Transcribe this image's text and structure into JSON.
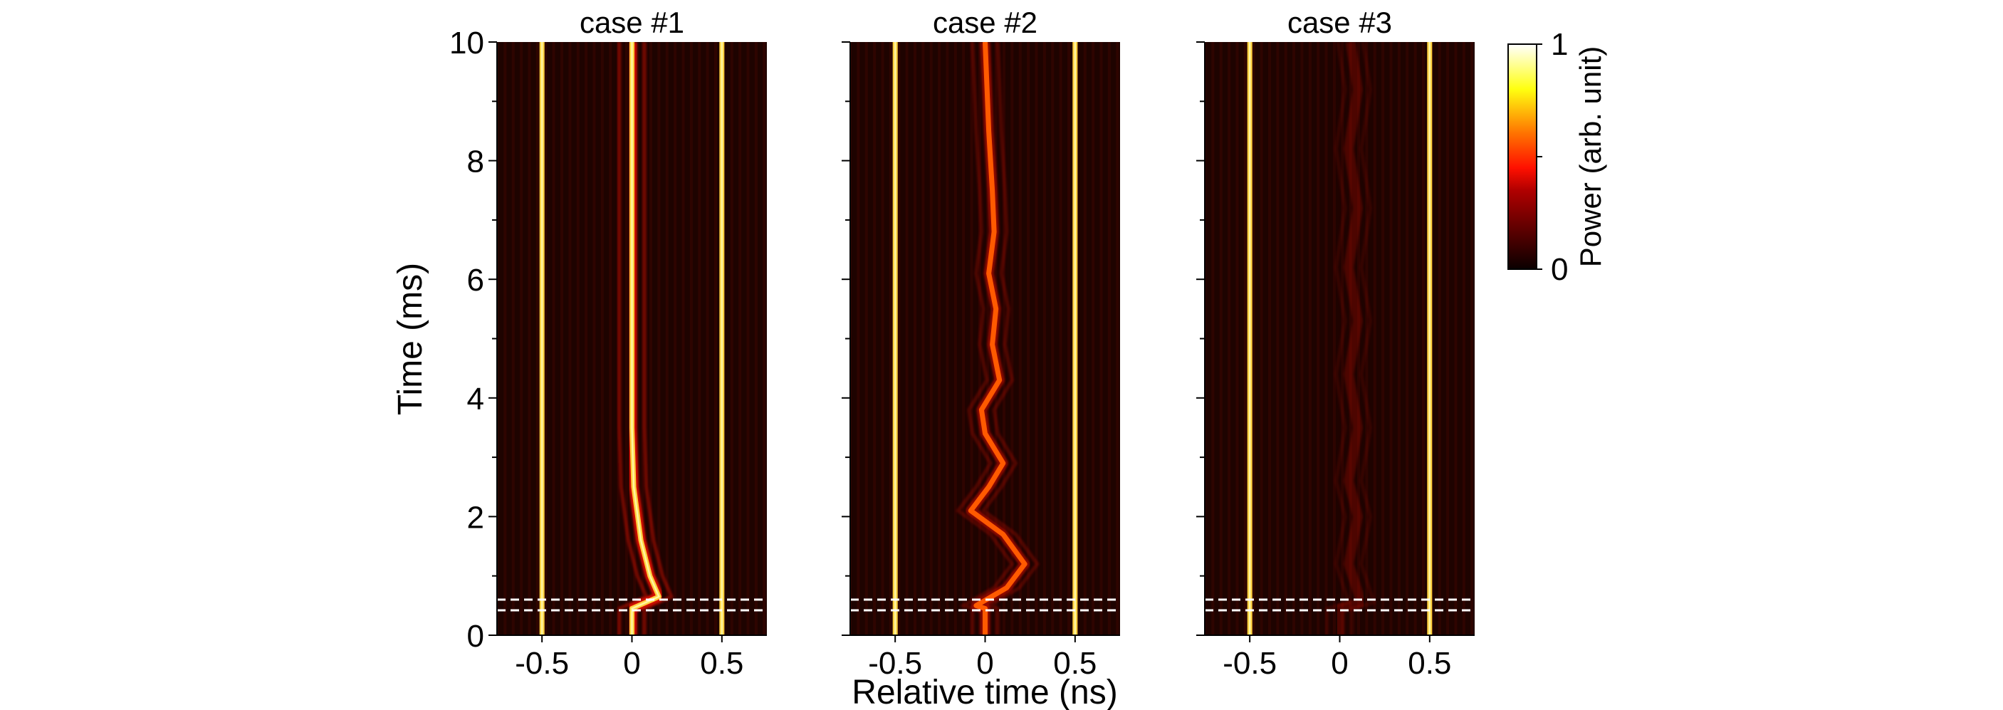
{
  "chart_data": {
    "type": "heatmap",
    "xlabel": "Relative time (ns)",
    "ylabel": "Time (ms)",
    "xlim": [
      -0.75,
      0.75
    ],
    "ylim": [
      0,
      10
    ],
    "xticks": [
      -0.5,
      0,
      0.5
    ],
    "xtick_labels": [
      "-0.5",
      "0",
      "0.5"
    ],
    "yticks": [
      0,
      2,
      4,
      6,
      8,
      10
    ],
    "ytick_labels": [
      "0",
      "2",
      "4",
      "6",
      "8",
      "10"
    ],
    "y_minor_ticks": [
      1,
      3,
      5,
      7,
      9
    ],
    "colormap": "hot",
    "colorbar": {
      "label": "Power (arb. unit)",
      "min_label": "0",
      "max_label": "1",
      "range": [
        0,
        1
      ]
    },
    "dashed_lines_ms": [
      0.42,
      0.6
    ],
    "panels": [
      {
        "title": "case #1",
        "traces": [
          {
            "role": "fixed",
            "points": [
              [
                -0.5,
                0
              ],
              [
                -0.5,
                10
              ]
            ],
            "intensity": 1.0
          },
          {
            "role": "fixed",
            "points": [
              [
                0.5,
                0
              ],
              [
                0.5,
                10
              ]
            ],
            "intensity": 1.0
          },
          {
            "role": "moving",
            "points": [
              [
                0,
                0
              ],
              [
                0,
                0.45
              ],
              [
                0.15,
                0.65
              ],
              [
                0.1,
                1.0
              ],
              [
                0.05,
                1.6
              ],
              [
                0.01,
                2.5
              ],
              [
                0,
                3.5
              ],
              [
                0,
                10
              ]
            ],
            "intensity": 1.0
          }
        ]
      },
      {
        "title": "case #2",
        "traces": [
          {
            "role": "fixed",
            "points": [
              [
                -0.5,
                0
              ],
              [
                -0.5,
                10
              ]
            ],
            "intensity": 1.0
          },
          {
            "role": "fixed",
            "points": [
              [
                0.5,
                0
              ],
              [
                0.5,
                10
              ]
            ],
            "intensity": 1.0
          },
          {
            "role": "moving",
            "points": [
              [
                0,
                0
              ],
              [
                0,
                0.45
              ],
              [
                -0.05,
                0.5
              ],
              [
                0.12,
                0.8
              ],
              [
                0.22,
                1.2
              ],
              [
                0.1,
                1.7
              ],
              [
                -0.08,
                2.1
              ],
              [
                0.02,
                2.5
              ],
              [
                0.1,
                2.9
              ],
              [
                0,
                3.4
              ],
              [
                -0.02,
                3.8
              ],
              [
                0.08,
                4.3
              ],
              [
                0.04,
                4.9
              ],
              [
                0.06,
                5.5
              ],
              [
                0.02,
                6.1
              ],
              [
                0.05,
                6.8
              ],
              [
                0.04,
                7.5
              ],
              [
                0.02,
                8.5
              ],
              [
                0,
                10
              ]
            ],
            "intensity": 0.6
          }
        ]
      },
      {
        "title": "case #3",
        "traces": [
          {
            "role": "fixed",
            "points": [
              [
                -0.5,
                0
              ],
              [
                -0.5,
                10
              ]
            ],
            "intensity": 1.0
          },
          {
            "role": "fixed",
            "points": [
              [
                0.5,
                0
              ],
              [
                0.5,
                10
              ]
            ],
            "intensity": 1.0
          },
          {
            "role": "moving",
            "points": [
              [
                0,
                0
              ],
              [
                0,
                0.45
              ],
              [
                0.12,
                0.55
              ],
              [
                0.05,
                1.2
              ],
              [
                0.1,
                2
              ],
              [
                0.05,
                2.6
              ],
              [
                0.1,
                3.5
              ],
              [
                0.05,
                4.4
              ],
              [
                0.1,
                5.3
              ],
              [
                0.05,
                6.2
              ],
              [
                0.1,
                7.2
              ],
              [
                0.05,
                8.2
              ],
              [
                0.1,
                9.2
              ],
              [
                0.06,
                10
              ]
            ],
            "intensity": 0.15
          }
        ]
      }
    ]
  }
}
